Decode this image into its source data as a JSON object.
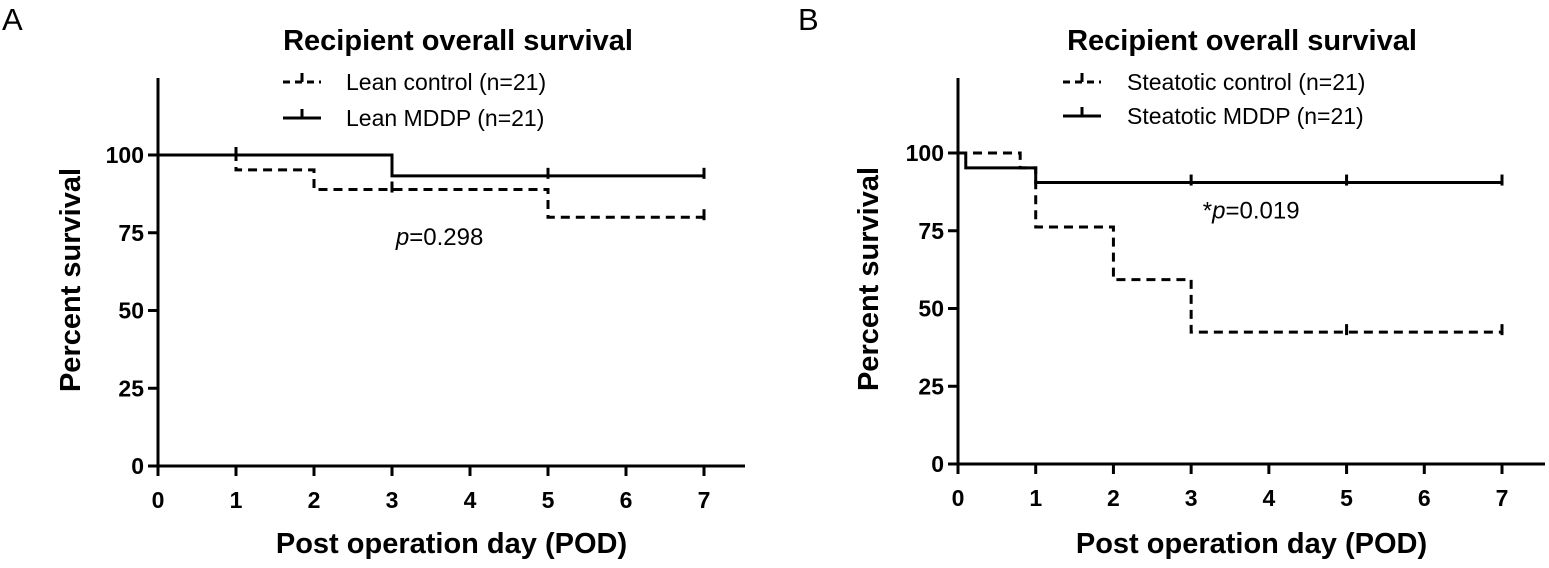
{
  "chart_data": [
    {
      "type": "line",
      "panel_label": "A",
      "title": "Recipient overall survival",
      "xlabel": "Post operation day (POD)",
      "ylabel": "Percent survival",
      "xlim": [
        0,
        7.5
      ],
      "ylim": [
        0,
        125
      ],
      "x_ticks": [
        0,
        1,
        2,
        3,
        4,
        5,
        6,
        7
      ],
      "y_ticks": [
        0,
        25,
        50,
        75,
        100
      ],
      "legend_position": "top",
      "annotation": {
        "prefix": "",
        "p_label": "p",
        "value": "=0.298",
        "x": 3.05,
        "y": 71
      },
      "series": [
        {
          "name": "Lean control (n=21)",
          "style": "dashed",
          "color": "#000000",
          "steps": [
            [
              0,
              100
            ],
            [
              1,
              95.2
            ],
            [
              2,
              88.9
            ],
            [
              5,
              80.0
            ],
            [
              7,
              80.0
            ]
          ],
          "censored": [
            [
              3,
              88.9
            ],
            [
              7,
              80.0
            ]
          ]
        },
        {
          "name": "Lean MDDP (n=21)",
          "style": "solid",
          "color": "#000000",
          "steps": [
            [
              0,
              100
            ],
            [
              3,
              93.3
            ],
            [
              7,
              93.3
            ]
          ],
          "censored": [
            [
              1,
              100
            ],
            [
              5,
              93.3
            ],
            [
              7,
              93.3
            ]
          ]
        }
      ]
    },
    {
      "type": "line",
      "panel_label": "B",
      "title": "Recipient overall survival",
      "xlabel": "Post operation day (POD)",
      "ylabel": "Percent survival",
      "xlim": [
        0,
        7.5
      ],
      "ylim": [
        0,
        125
      ],
      "x_ticks": [
        0,
        1,
        2,
        3,
        4,
        5,
        6,
        7
      ],
      "y_ticks": [
        0,
        25,
        50,
        75,
        100
      ],
      "legend_position": "top",
      "annotation": {
        "prefix": "*",
        "p_label": "p",
        "value": "=0.019",
        "x": 3.15,
        "y": 79
      },
      "series": [
        {
          "name": "Steatotic control (n=21)",
          "style": "dashed",
          "color": "#000000",
          "steps": [
            [
              0,
              100
            ],
            [
              0.8,
              95.2
            ],
            [
              1,
              76.2
            ],
            [
              2,
              59.3
            ],
            [
              3,
              42.4
            ],
            [
              7,
              42.4
            ]
          ],
          "censored": [
            [
              5,
              42.4
            ],
            [
              7,
              42.4
            ]
          ]
        },
        {
          "name": "Steatotic MDDP (n=21)",
          "style": "solid",
          "color": "#000000",
          "steps": [
            [
              0,
              100
            ],
            [
              0.1,
              95.2
            ],
            [
              1,
              90.5
            ],
            [
              7,
              90.5
            ]
          ],
          "censored": [
            [
              3,
              90.5
            ],
            [
              5,
              90.5
            ],
            [
              7,
              90.5
            ]
          ]
        }
      ]
    }
  ]
}
